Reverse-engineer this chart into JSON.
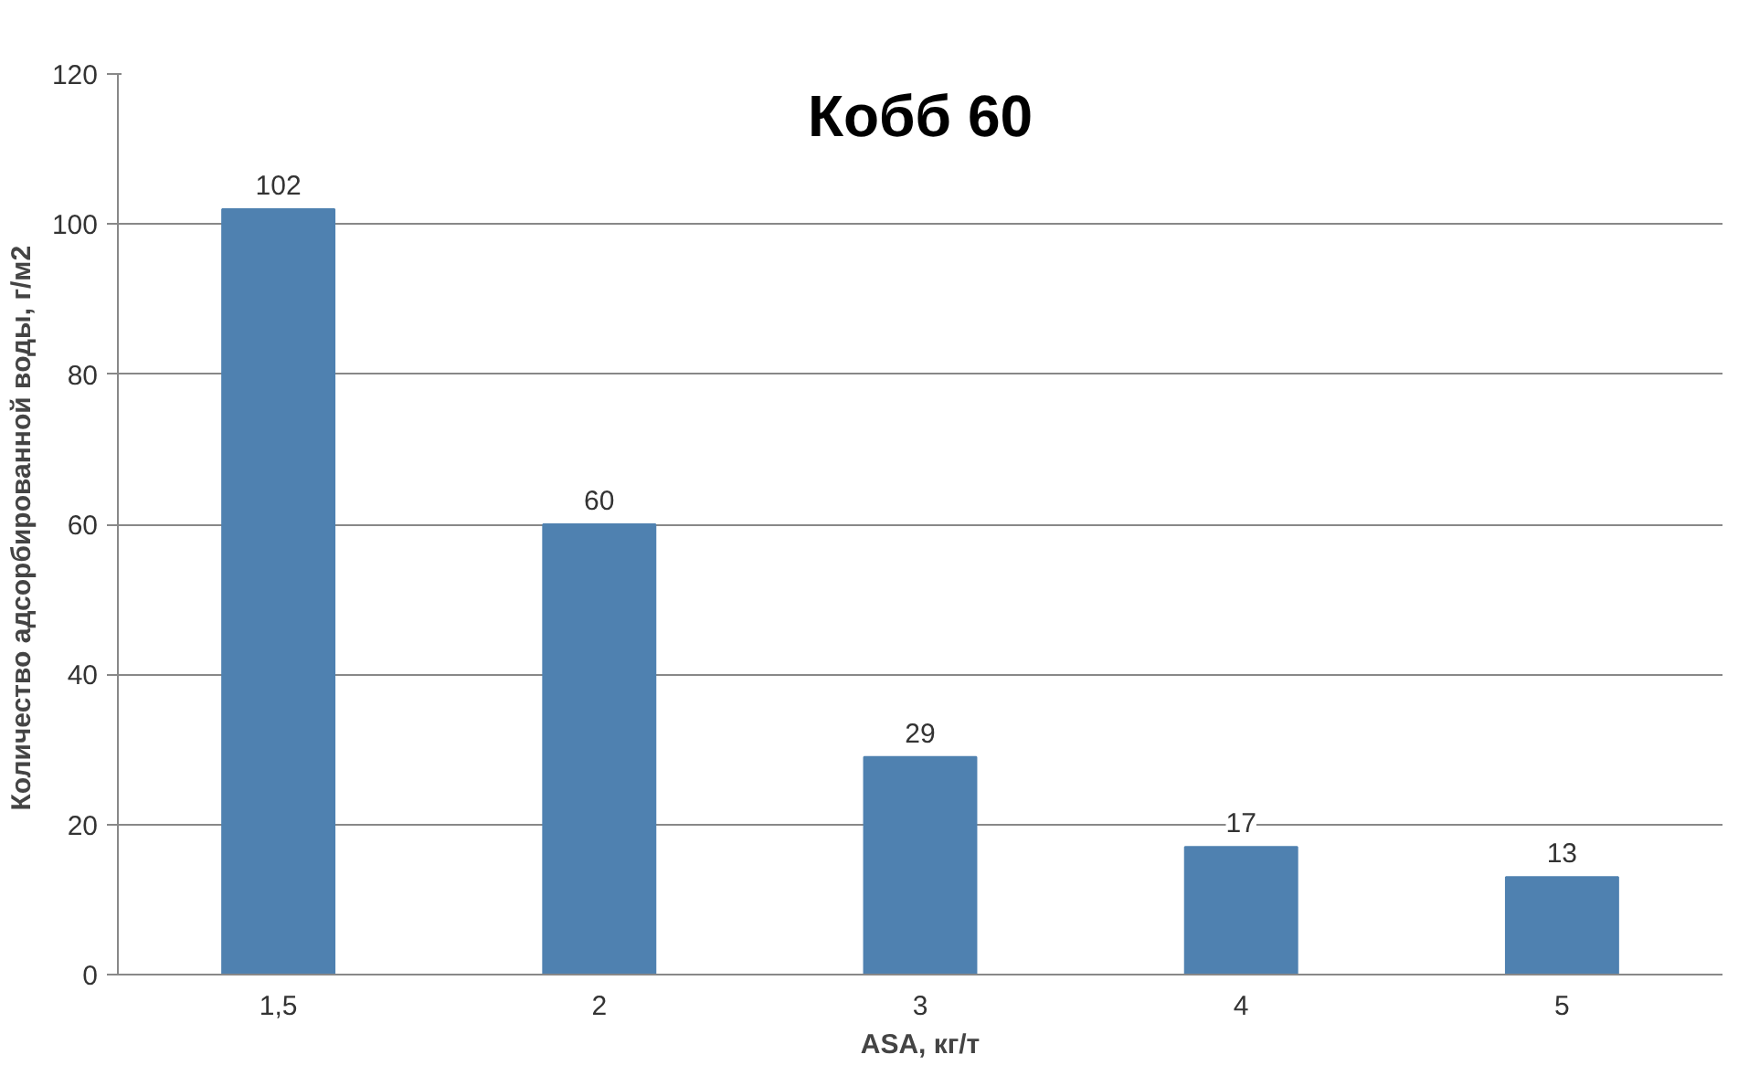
{
  "chart_data": {
    "type": "bar",
    "title": "Кобб 60",
    "xlabel": "ASA, кг/т",
    "ylabel": "Количество адсорбированной  воды, г/м2",
    "categories": [
      "1,5",
      "2",
      "3",
      "4",
      "5"
    ],
    "values": [
      102,
      60,
      29,
      17,
      13
    ],
    "color": "#4f81b0",
    "ylim": [
      0,
      120
    ],
    "yticks": [
      0,
      20,
      40,
      60,
      80,
      100,
      120
    ],
    "grid": "y",
    "data_labels": true
  }
}
